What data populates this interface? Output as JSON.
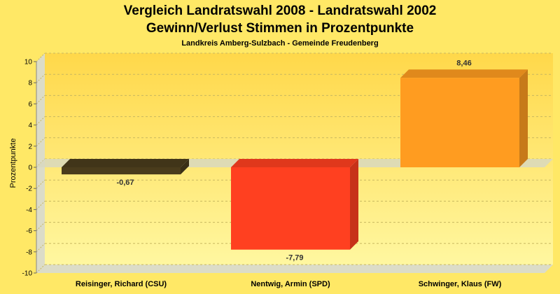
{
  "chart_data": {
    "type": "bar",
    "title": "Vergleich Landratswahl 2008 - Landratswahl 2002",
    "title2": "Gewinn/Verlust Stimmen in Prozentpunkte",
    "subtitle": "Landkreis Amberg-Sulzbach - Gemeinde Freudenberg",
    "ylabel": "Prozentpunkte",
    "xlabel": "",
    "ylim": [
      -10,
      10
    ],
    "yticks": [
      "10",
      "8",
      "6",
      "4",
      "2",
      "0",
      "-2",
      "-4",
      "-6",
      "-8",
      "-10"
    ],
    "categories": [
      "Reisinger, Richard (CSU)",
      "Nentwig, Armin (SPD)",
      "Schwinger, Klaus (FW)"
    ],
    "values": [
      -0.67,
      -7.79,
      8.46
    ],
    "data_labels": [
      "-0,67",
      "-7,79",
      "8,46"
    ],
    "colors": [
      "#4a3c1c",
      "#ff4020",
      "#ff9c20"
    ],
    "grid": true,
    "legend": "none"
  }
}
